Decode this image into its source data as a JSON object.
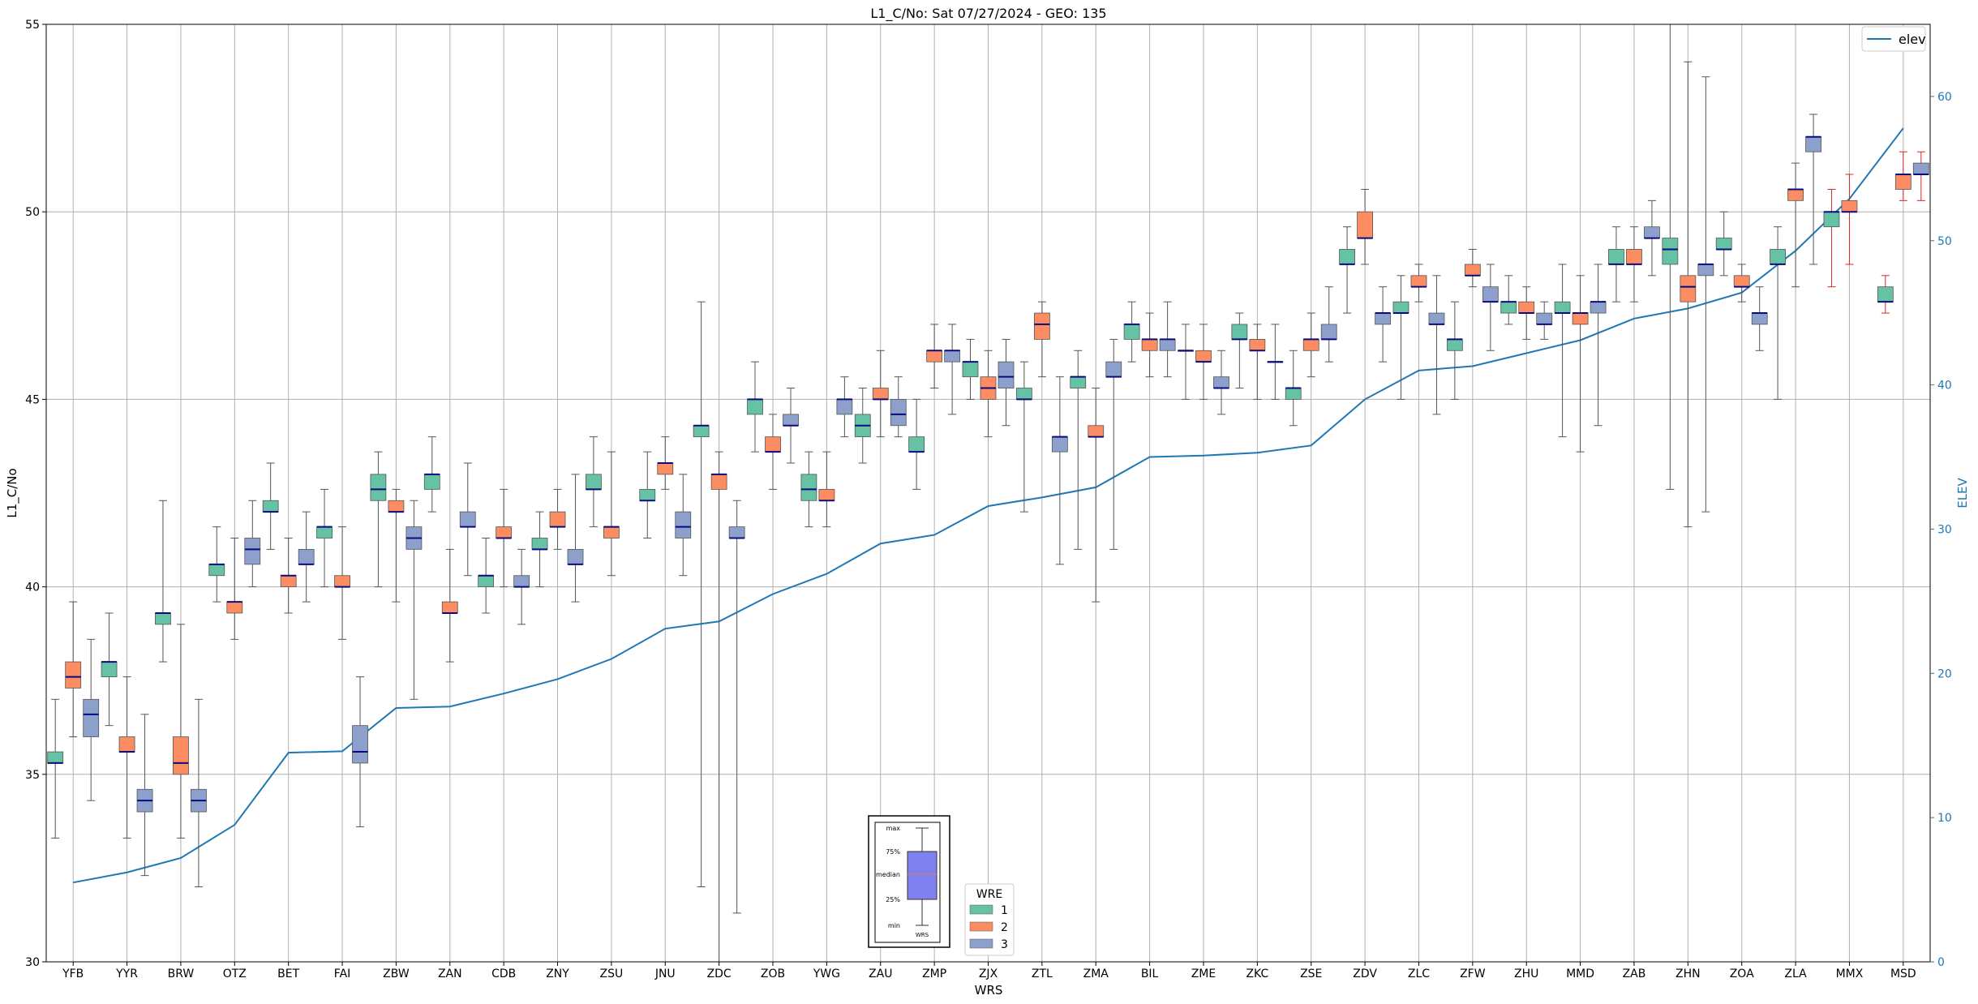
{
  "chart_data": {
    "type": "box",
    "title": "L1_C/No: Sat 07/27/2024 - GEO: 135",
    "xlabel": "WRS",
    "ylabel": "L1_C/No",
    "ylabel_right": "ELEV",
    "ylim": [
      30,
      55
    ],
    "ylim_right": [
      0,
      65
    ],
    "yticks": [
      30,
      35,
      40,
      45,
      50,
      55
    ],
    "yticks_right": [
      0,
      10,
      20,
      30,
      40,
      50,
      60
    ],
    "grid": true,
    "categories": [
      "YFB",
      "YYR",
      "BRW",
      "OTZ",
      "BET",
      "FAI",
      "ZBW",
      "ZAN",
      "CDB",
      "ZNY",
      "ZSU",
      "JNU",
      "ZDC",
      "ZOB",
      "YWG",
      "ZAU",
      "ZMP",
      "ZJX",
      "ZTL",
      "ZMA",
      "BIL",
      "ZME",
      "ZKC",
      "ZSE",
      "ZDV",
      "ZLC",
      "ZFW",
      "ZHU",
      "MMD",
      "ZAB",
      "ZHN",
      "ZOA",
      "ZLA",
      "MMX",
      "MSD"
    ],
    "box_legend": {
      "title": "WRE",
      "entries": [
        {
          "label": "1",
          "color": "#66c2a5"
        },
        {
          "label": "2",
          "color": "#fc8d62"
        },
        {
          "label": "3",
          "color": "#8da0cb"
        }
      ],
      "placement": "lower-center"
    },
    "line_series": {
      "name": "elev",
      "color": "#1f77b4",
      "axis": "right",
      "legend_placement": "top-right",
      "values": [
        5.5,
        6.2,
        7.2,
        9.5,
        14.5,
        14.6,
        17.6,
        17.7,
        18.6,
        19.6,
        21.0,
        23.1,
        23.6,
        25.5,
        26.9,
        29.0,
        29.6,
        31.6,
        32.2,
        32.9,
        35.0,
        35.1,
        35.3,
        35.8,
        39.0,
        41.0,
        41.3,
        42.2,
        43.1,
        44.6,
        45.3,
        46.4,
        49.3,
        52.9,
        57.8
      ]
    },
    "boxes": [
      {
        "station": "YFB",
        "wre": 1,
        "min": 33.3,
        "q1": 35.3,
        "median": 35.3,
        "q3": 35.6,
        "max": 37.0
      },
      {
        "station": "YFB",
        "wre": 2,
        "min": 36.0,
        "q1": 37.3,
        "median": 37.6,
        "q3": 38.0,
        "max": 39.6
      },
      {
        "station": "YFB",
        "wre": 3,
        "min": 34.3,
        "q1": 36.0,
        "median": 36.6,
        "q3": 37.0,
        "max": 38.6
      },
      {
        "station": "YYR",
        "wre": 1,
        "min": 36.3,
        "q1": 37.6,
        "median": 38.0,
        "q3": 38.0,
        "max": 39.3
      },
      {
        "station": "YYR",
        "wre": 2,
        "min": 33.3,
        "q1": 35.6,
        "median": 35.6,
        "q3": 36.0,
        "max": 37.6
      },
      {
        "station": "YYR",
        "wre": 3,
        "min": 32.3,
        "q1": 34.0,
        "median": 34.3,
        "q3": 34.6,
        "max": 36.6
      },
      {
        "station": "BRW",
        "wre": 1,
        "min": 38.0,
        "q1": 39.0,
        "median": 39.3,
        "q3": 39.3,
        "max": 42.3
      },
      {
        "station": "BRW",
        "wre": 2,
        "min": 33.3,
        "q1": 35.0,
        "median": 35.3,
        "q3": 36.0,
        "max": 39.0
      },
      {
        "station": "BRW",
        "wre": 3,
        "min": 32.0,
        "q1": 34.0,
        "median": 34.3,
        "q3": 34.6,
        "max": 37.0
      },
      {
        "station": "OTZ",
        "wre": 1,
        "min": 39.6,
        "q1": 40.3,
        "median": 40.6,
        "q3": 40.6,
        "max": 41.6
      },
      {
        "station": "OTZ",
        "wre": 2,
        "min": 38.6,
        "q1": 39.3,
        "median": 39.6,
        "q3": 39.6,
        "max": 41.3
      },
      {
        "station": "OTZ",
        "wre": 3,
        "min": 40.0,
        "q1": 40.6,
        "median": 41.0,
        "q3": 41.3,
        "max": 42.3
      },
      {
        "station": "BET",
        "wre": 1,
        "min": 41.0,
        "q1": 42.0,
        "median": 42.0,
        "q3": 42.3,
        "max": 43.3
      },
      {
        "station": "BET",
        "wre": 2,
        "min": 39.3,
        "q1": 40.0,
        "median": 40.3,
        "q3": 40.3,
        "max": 41.3
      },
      {
        "station": "BET",
        "wre": 3,
        "min": 39.6,
        "q1": 40.6,
        "median": 40.6,
        "q3": 41.0,
        "max": 42.0
      },
      {
        "station": "FAI",
        "wre": 1,
        "min": 40.0,
        "q1": 41.3,
        "median": 41.6,
        "q3": 41.6,
        "max": 42.6
      },
      {
        "station": "FAI",
        "wre": 2,
        "min": 38.6,
        "q1": 40.0,
        "median": 40.0,
        "q3": 40.3,
        "max": 41.6
      },
      {
        "station": "FAI",
        "wre": 3,
        "min": 33.6,
        "q1": 35.3,
        "median": 35.6,
        "q3": 36.3,
        "max": 37.6
      },
      {
        "station": "ZBW",
        "wre": 1,
        "min": 40.0,
        "q1": 42.3,
        "median": 42.6,
        "q3": 43.0,
        "max": 43.6
      },
      {
        "station": "ZBW",
        "wre": 2,
        "min": 39.6,
        "q1": 42.0,
        "median": 42.0,
        "q3": 42.3,
        "max": 42.6
      },
      {
        "station": "ZBW",
        "wre": 3,
        "min": 37.0,
        "q1": 41.0,
        "median": 41.3,
        "q3": 41.6,
        "max": 42.3
      },
      {
        "station": "ZAN",
        "wre": 1,
        "min": 42.0,
        "q1": 42.6,
        "median": 43.0,
        "q3": 43.0,
        "max": 44.0
      },
      {
        "station": "ZAN",
        "wre": 2,
        "min": 38.0,
        "q1": 39.3,
        "median": 39.3,
        "q3": 39.6,
        "max": 41.0
      },
      {
        "station": "ZAN",
        "wre": 3,
        "min": 40.3,
        "q1": 41.6,
        "median": 41.6,
        "q3": 42.0,
        "max": 43.3
      },
      {
        "station": "CDB",
        "wre": 1,
        "min": 39.3,
        "q1": 40.0,
        "median": 40.3,
        "q3": 40.3,
        "max": 41.3
      },
      {
        "station": "CDB",
        "wre": 2,
        "min": 40.0,
        "q1": 41.3,
        "median": 41.3,
        "q3": 41.6,
        "max": 42.6
      },
      {
        "station": "CDB",
        "wre": 3,
        "min": 39.0,
        "q1": 40.0,
        "median": 40.0,
        "q3": 40.3,
        "max": 41.0
      },
      {
        "station": "ZNY",
        "wre": 1,
        "min": 40.0,
        "q1": 41.0,
        "median": 41.0,
        "q3": 41.3,
        "max": 42.0
      },
      {
        "station": "ZNY",
        "wre": 2,
        "min": 41.0,
        "q1": 41.6,
        "median": 41.6,
        "q3": 42.0,
        "max": 42.6
      },
      {
        "station": "ZNY",
        "wre": 3,
        "min": 39.6,
        "q1": 40.6,
        "median": 40.6,
        "q3": 41.0,
        "max": 43.0
      },
      {
        "station": "ZSU",
        "wre": 1,
        "min": 41.6,
        "q1": 42.6,
        "median": 42.6,
        "q3": 43.0,
        "max": 44.0
      },
      {
        "station": "ZSU",
        "wre": 2,
        "min": 40.3,
        "q1": 41.3,
        "median": 41.6,
        "q3": 41.6,
        "max": 43.6
      },
      {
        "station": "JNU",
        "wre": 1,
        "min": 41.3,
        "q1": 42.3,
        "median": 42.3,
        "q3": 42.6,
        "max": 43.6
      },
      {
        "station": "JNU",
        "wre": 2,
        "min": 42.6,
        "q1": 43.0,
        "median": 43.3,
        "q3": 43.3,
        "max": 44.0
      },
      {
        "station": "JNU",
        "wre": 3,
        "min": 40.3,
        "q1": 41.3,
        "median": 41.6,
        "q3": 42.0,
        "max": 43.0
      },
      {
        "station": "ZDC",
        "wre": 1,
        "min": 32.0,
        "q1": 44.0,
        "median": 44.3,
        "q3": 44.3,
        "max": 47.6
      },
      {
        "station": "ZDC",
        "wre": 2,
        "min": 30.0,
        "q1": 42.6,
        "median": 43.0,
        "q3": 43.0,
        "max": 43.6
      },
      {
        "station": "ZDC",
        "wre": 3,
        "min": 31.3,
        "q1": 41.3,
        "median": 41.3,
        "q3": 41.6,
        "max": 42.3
      },
      {
        "station": "ZOB",
        "wre": 1,
        "min": 43.6,
        "q1": 44.6,
        "median": 45.0,
        "q3": 45.0,
        "max": 46.0
      },
      {
        "station": "ZOB",
        "wre": 2,
        "min": 42.6,
        "q1": 43.6,
        "median": 43.6,
        "q3": 44.0,
        "max": 44.6
      },
      {
        "station": "ZOB",
        "wre": 3,
        "min": 43.3,
        "q1": 44.3,
        "median": 44.3,
        "q3": 44.6,
        "max": 45.3
      },
      {
        "station": "YWG",
        "wre": 1,
        "min": 41.6,
        "q1": 42.3,
        "median": 42.6,
        "q3": 43.0,
        "max": 43.6
      },
      {
        "station": "YWG",
        "wre": 2,
        "min": 41.6,
        "q1": 42.3,
        "median": 42.3,
        "q3": 42.6,
        "max": 43.6
      },
      {
        "station": "YWG",
        "wre": 3,
        "min": 44.0,
        "q1": 44.6,
        "median": 45.0,
        "q3": 45.0,
        "max": 45.6
      },
      {
        "station": "ZAU",
        "wre": 1,
        "min": 43.3,
        "q1": 44.0,
        "median": 44.3,
        "q3": 44.6,
        "max": 45.3
      },
      {
        "station": "ZAU",
        "wre": 2,
        "min": 44.0,
        "q1": 45.0,
        "median": 45.0,
        "q3": 45.3,
        "max": 46.3
      },
      {
        "station": "ZAU",
        "wre": 3,
        "min": 44.0,
        "q1": 44.3,
        "median": 44.6,
        "q3": 45.0,
        "max": 45.6
      },
      {
        "station": "ZMP",
        "wre": 1,
        "min": 42.6,
        "q1": 43.6,
        "median": 43.6,
        "q3": 44.0,
        "max": 45.0
      },
      {
        "station": "ZMP",
        "wre": 2,
        "min": 45.3,
        "q1": 46.0,
        "median": 46.3,
        "q3": 46.3,
        "max": 47.0
      },
      {
        "station": "ZMP",
        "wre": 3,
        "min": 44.6,
        "q1": 46.0,
        "median": 46.3,
        "q3": 46.3,
        "max": 47.0
      },
      {
        "station": "ZJX",
        "wre": 1,
        "min": 45.0,
        "q1": 45.6,
        "median": 46.0,
        "q3": 46.0,
        "max": 46.6
      },
      {
        "station": "ZJX",
        "wre": 2,
        "min": 44.0,
        "q1": 45.0,
        "median": 45.3,
        "q3": 45.6,
        "max": 46.3
      },
      {
        "station": "ZJX",
        "wre": 3,
        "min": 44.3,
        "q1": 45.3,
        "median": 45.6,
        "q3": 46.0,
        "max": 46.6
      },
      {
        "station": "ZTL",
        "wre": 1,
        "min": 42.0,
        "q1": 45.0,
        "median": 45.0,
        "q3": 45.3,
        "max": 46.0
      },
      {
        "station": "ZTL",
        "wre": 2,
        "min": 45.6,
        "q1": 46.6,
        "median": 47.0,
        "q3": 47.3,
        "max": 47.6
      },
      {
        "station": "ZTL",
        "wre": 3,
        "min": 40.6,
        "q1": 43.6,
        "median": 44.0,
        "q3": 44.0,
        "max": 45.6
      },
      {
        "station": "ZMA",
        "wre": 1,
        "min": 41.0,
        "q1": 45.3,
        "median": 45.6,
        "q3": 45.6,
        "max": 46.3
      },
      {
        "station": "ZMA",
        "wre": 2,
        "min": 39.6,
        "q1": 44.0,
        "median": 44.0,
        "q3": 44.3,
        "max": 45.3
      },
      {
        "station": "ZMA",
        "wre": 3,
        "min": 41.0,
        "q1": 45.6,
        "median": 45.6,
        "q3": 46.0,
        "max": 46.6
      },
      {
        "station": "BIL",
        "wre": 1,
        "min": 46.0,
        "q1": 46.6,
        "median": 47.0,
        "q3": 47.0,
        "max": 47.6
      },
      {
        "station": "BIL",
        "wre": 2,
        "min": 45.6,
        "q1": 46.3,
        "median": 46.6,
        "q3": 46.6,
        "max": 47.3
      },
      {
        "station": "BIL",
        "wre": 3,
        "min": 45.6,
        "q1": 46.3,
        "median": 46.6,
        "q3": 46.6,
        "max": 47.6
      },
      {
        "station": "ZME",
        "wre": 1,
        "min": 45.0,
        "q1": 46.3,
        "median": 46.3,
        "q3": 46.3,
        "max": 47.0
      },
      {
        "station": "ZME",
        "wre": 2,
        "min": 45.0,
        "q1": 46.0,
        "median": 46.0,
        "q3": 46.3,
        "max": 47.0
      },
      {
        "station": "ZME",
        "wre": 3,
        "min": 44.6,
        "q1": 45.3,
        "median": 45.3,
        "q3": 45.6,
        "max": 46.3
      },
      {
        "station": "ZKC",
        "wre": 1,
        "min": 45.3,
        "q1": 46.6,
        "median": 46.6,
        "q3": 47.0,
        "max": 47.3
      },
      {
        "station": "ZKC",
        "wre": 2,
        "min": 45.0,
        "q1": 46.3,
        "median": 46.3,
        "q3": 46.6,
        "max": 47.0
      },
      {
        "station": "ZKC",
        "wre": 3,
        "min": 45.0,
        "q1": 46.0,
        "median": 46.0,
        "q3": 46.0,
        "max": 47.0
      },
      {
        "station": "ZSE",
        "wre": 1,
        "min": 44.3,
        "q1": 45.0,
        "median": 45.3,
        "q3": 45.3,
        "max": 46.3
      },
      {
        "station": "ZSE",
        "wre": 2,
        "min": 45.6,
        "q1": 46.3,
        "median": 46.6,
        "q3": 46.6,
        "max": 47.3
      },
      {
        "station": "ZSE",
        "wre": 3,
        "min": 46.0,
        "q1": 46.6,
        "median": 46.6,
        "q3": 47.0,
        "max": 48.0
      },
      {
        "station": "ZDV",
        "wre": 1,
        "min": 47.3,
        "q1": 48.6,
        "median": 48.6,
        "q3": 49.0,
        "max": 49.6
      },
      {
        "station": "ZDV",
        "wre": 2,
        "min": 48.6,
        "q1": 49.3,
        "median": 49.3,
        "q3": 50.0,
        "max": 50.6
      },
      {
        "station": "ZDV",
        "wre": 3,
        "min": 46.0,
        "q1": 47.0,
        "median": 47.3,
        "q3": 47.3,
        "max": 48.0
      },
      {
        "station": "ZLC",
        "wre": 1,
        "min": 45.0,
        "q1": 47.3,
        "median": 47.3,
        "q3": 47.6,
        "max": 48.3
      },
      {
        "station": "ZLC",
        "wre": 2,
        "min": 47.6,
        "q1": 48.0,
        "median": 48.0,
        "q3": 48.3,
        "max": 48.6
      },
      {
        "station": "ZLC",
        "wre": 3,
        "min": 44.6,
        "q1": 47.0,
        "median": 47.0,
        "q3": 47.3,
        "max": 48.3
      },
      {
        "station": "ZFW",
        "wre": 1,
        "min": 45.0,
        "q1": 46.3,
        "median": 46.6,
        "q3": 46.6,
        "max": 47.6
      },
      {
        "station": "ZFW",
        "wre": 2,
        "min": 48.0,
        "q1": 48.3,
        "median": 48.3,
        "q3": 48.6,
        "max": 49.0
      },
      {
        "station": "ZFW",
        "wre": 3,
        "min": 46.3,
        "q1": 47.6,
        "median": 47.6,
        "q3": 48.0,
        "max": 48.6
      },
      {
        "station": "ZHU",
        "wre": 1,
        "min": 47.0,
        "q1": 47.3,
        "median": 47.6,
        "q3": 47.6,
        "max": 48.3
      },
      {
        "station": "ZHU",
        "wre": 2,
        "min": 46.6,
        "q1": 47.3,
        "median": 47.3,
        "q3": 47.6,
        "max": 48.0
      },
      {
        "station": "ZHU",
        "wre": 3,
        "min": 46.6,
        "q1": 47.0,
        "median": 47.0,
        "q3": 47.3,
        "max": 47.6
      },
      {
        "station": "MMD",
        "wre": 1,
        "min": 44.0,
        "q1": 47.3,
        "median": 47.3,
        "q3": 47.6,
        "max": 48.6
      },
      {
        "station": "MMD",
        "wre": 2,
        "min": 43.6,
        "q1": 47.0,
        "median": 47.3,
        "q3": 47.3,
        "max": 48.3
      },
      {
        "station": "MMD",
        "wre": 3,
        "min": 44.3,
        "q1": 47.3,
        "median": 47.6,
        "q3": 47.6,
        "max": 48.6
      },
      {
        "station": "ZAB",
        "wre": 1,
        "min": 47.6,
        "q1": 48.6,
        "median": 48.6,
        "q3": 49.0,
        "max": 49.6
      },
      {
        "station": "ZAB",
        "wre": 2,
        "min": 47.6,
        "q1": 48.6,
        "median": 48.6,
        "q3": 49.0,
        "max": 49.6
      },
      {
        "station": "ZAB",
        "wre": 3,
        "min": 48.3,
        "q1": 49.3,
        "median": 49.3,
        "q3": 49.6,
        "max": 50.3
      },
      {
        "station": "ZHN",
        "wre": 1,
        "min": 42.6,
        "q1": 48.6,
        "median": 49.0,
        "q3": 49.3,
        "max": 55.0
      },
      {
        "station": "ZHN",
        "wre": 2,
        "min": 41.6,
        "q1": 47.6,
        "median": 48.0,
        "q3": 48.3,
        "max": 54.0
      },
      {
        "station": "ZHN",
        "wre": 3,
        "min": 42.0,
        "q1": 48.3,
        "median": 48.6,
        "q3": 48.6,
        "max": 53.6
      },
      {
        "station": "ZOA",
        "wre": 1,
        "min": 48.3,
        "q1": 49.0,
        "median": 49.0,
        "q3": 49.3,
        "max": 50.0
      },
      {
        "station": "ZOA",
        "wre": 2,
        "min": 47.6,
        "q1": 48.0,
        "median": 48.0,
        "q3": 48.3,
        "max": 48.6
      },
      {
        "station": "ZOA",
        "wre": 3,
        "min": 46.3,
        "q1": 47.0,
        "median": 47.3,
        "q3": 47.3,
        "max": 48.0
      },
      {
        "station": "ZLA",
        "wre": 1,
        "min": 45.0,
        "q1": 48.6,
        "median": 48.6,
        "q3": 49.0,
        "max": 49.6
      },
      {
        "station": "ZLA",
        "wre": 2,
        "min": 48.0,
        "q1": 50.3,
        "median": 50.6,
        "q3": 50.6,
        "max": 51.3
      },
      {
        "station": "ZLA",
        "wre": 3,
        "min": 48.6,
        "q1": 51.6,
        "median": 52.0,
        "q3": 52.0,
        "max": 52.6
      },
      {
        "station": "MMX",
        "wre": 1,
        "min": 48.0,
        "q1": 49.6,
        "median": 50.0,
        "q3": 50.0,
        "max": 50.6
      },
      {
        "station": "MMX",
        "wre": 2,
        "min": 48.6,
        "q1": 50.0,
        "median": 50.0,
        "q3": 50.3,
        "max": 51.0
      },
      {
        "station": "MSD",
        "wre": 1,
        "min": 47.3,
        "q1": 47.6,
        "median": 47.6,
        "q3": 48.0,
        "max": 48.3
      },
      {
        "station": "MSD",
        "wre": 2,
        "min": 50.3,
        "q1": 50.6,
        "median": 51.0,
        "q3": 51.0,
        "max": 51.6
      },
      {
        "station": "MSD",
        "wre": 3,
        "min": 50.3,
        "q1": 51.0,
        "median": 51.0,
        "q3": 51.3,
        "max": 51.6
      }
    ],
    "key_inset_labels": [
      "max",
      "75%",
      "median",
      "25%",
      "min",
      "WRS"
    ]
  }
}
